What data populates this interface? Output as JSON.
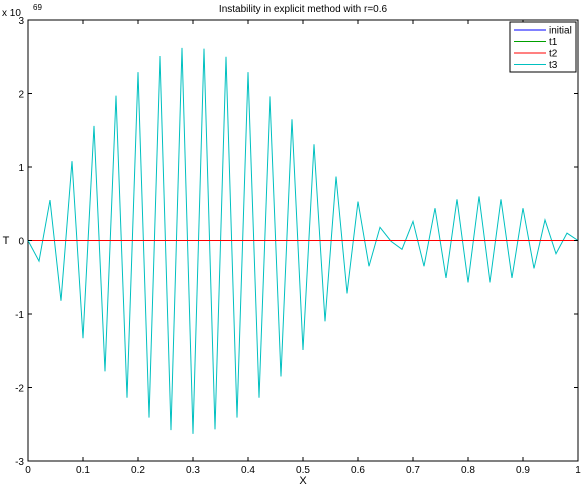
{
  "chart_data": {
    "type": "line",
    "title": "Instability in explicit method with r=0.6",
    "xlabel": "X",
    "ylabel": "T",
    "y_exponent_label": "x 10",
    "y_exponent_power": "69",
    "xlim": [
      0,
      1
    ],
    "ylim": [
      -3,
      3
    ],
    "xticks": [
      0,
      0.1,
      0.2,
      0.3,
      0.4,
      0.5,
      0.6,
      0.7,
      0.8,
      0.9,
      1
    ],
    "xtick_labels": [
      "0",
      "0.1",
      "0.2",
      "0.3",
      "0.4",
      "0.5",
      "0.6",
      "0.7",
      "0.8",
      "0.9",
      "1"
    ],
    "yticks": [
      -3,
      -2,
      -1,
      0,
      1,
      2,
      3
    ],
    "ytick_labels": [
      "-3",
      "-2",
      "-1",
      "0",
      "1",
      "2",
      "3"
    ],
    "grid": false,
    "legend_position": "top-right",
    "series": [
      {
        "name": "initial",
        "color": "#0000ff",
        "x": [
          0,
          1
        ],
        "y": [
          0,
          0
        ]
      },
      {
        "name": "t1",
        "color": "#00a000",
        "x": [
          0,
          1
        ],
        "y": [
          0,
          0
        ]
      },
      {
        "name": "t2",
        "color": "#ff0000",
        "x": [
          0,
          1
        ],
        "y": [
          0,
          0
        ]
      },
      {
        "name": "t3",
        "color": "#00c0c0",
        "x": [
          0,
          0.02,
          0.04,
          0.06,
          0.08,
          0.1,
          0.12,
          0.14,
          0.16,
          0.18,
          0.2,
          0.22,
          0.24,
          0.26,
          0.28,
          0.3,
          0.32,
          0.34,
          0.36,
          0.38,
          0.4,
          0.42,
          0.44,
          0.46,
          0.48,
          0.5,
          0.52,
          0.54,
          0.56,
          0.58,
          0.6,
          0.62,
          0.64,
          0.66,
          0.68,
          0.7,
          0.72,
          0.74,
          0.76,
          0.78,
          0.8,
          0.82,
          0.84,
          0.86,
          0.88,
          0.9,
          0.92,
          0.94,
          0.96,
          0.98,
          1
        ],
        "y": [
          0,
          -0.28,
          0.55,
          -0.82,
          1.08,
          -1.33,
          1.56,
          -1.78,
          1.97,
          -2.14,
          2.29,
          -2.41,
          2.51,
          -2.58,
          2.62,
          -2.63,
          2.61,
          -2.57,
          2.5,
          -2.41,
          2.29,
          -2.14,
          1.96,
          -1.85,
          1.65,
          -1.49,
          1.31,
          -1.1,
          0.87,
          -0.72,
          0.53,
          -0.35,
          0.18,
          -0.01,
          -0.12,
          0.26,
          -0.35,
          0.44,
          -0.51,
          0.56,
          -0.57,
          0.6,
          -0.57,
          0.56,
          -0.51,
          0.44,
          -0.38,
          0.28,
          -0.18,
          0.1,
          0
        ]
      }
    ]
  }
}
